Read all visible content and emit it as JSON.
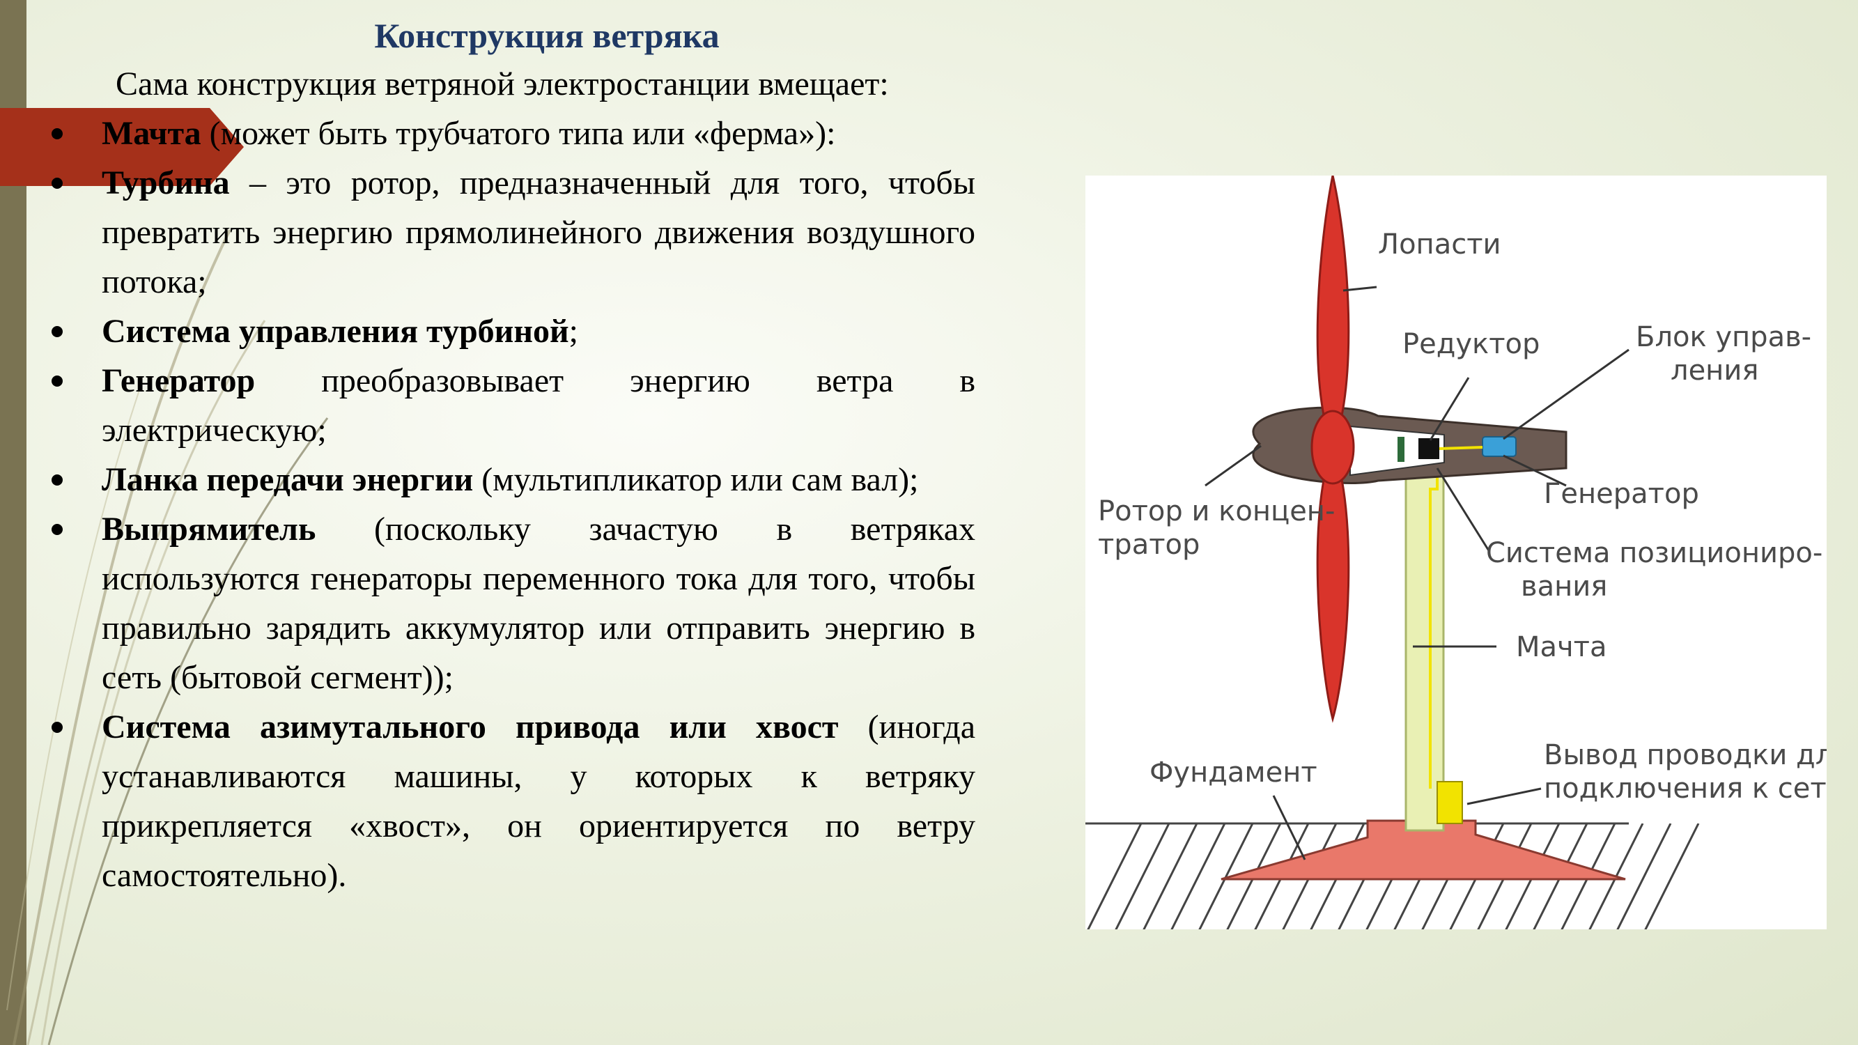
{
  "slide": {
    "title": "Конструкция ветряка",
    "intro": "Сама конструкция ветряной электростанции вмещает:",
    "bullets": [
      {
        "bold": "Мачта",
        "text": " (может быть трубчатого типа или «ферма»):"
      },
      {
        "bold": "Турбина",
        "text": " – это ротор, предназначенный для того, чтобы превратить энергию прямолинейного движения воздушного потока;"
      },
      {
        "bold": "Система управления турбиной",
        "text": ";"
      },
      {
        "bold": "Генератор",
        "text": " преобразовывает энергию ветра в электрическую;"
      },
      {
        "bold": "Ланка передачи энергии",
        "text": " (мультипликатор или сам вал);"
      },
      {
        "bold": "Выпрямитель",
        "text": " (поскольку зачастую в ветряках используются генераторы переменного тока для того, чтобы правильно зарядить аккумулятор или отправить энергию в сеть (бытовой сегмент));"
      },
      {
        "bold": "Система азимутального привода или хвост",
        "text": " (иногда устанавливаются машины, у которых к ветряку прикрепляется «хвост», он ориентируется по ветру самостоятельно)."
      }
    ]
  },
  "diagram": {
    "labels": {
      "blades": "Лопасти",
      "gearbox": "Редуктор",
      "control_1": "Блок управ-",
      "control_2": "ления",
      "rotor_1": "Ротор и концен-",
      "rotor_2": "тратор",
      "generator": "Генератор",
      "positioning_1": "Система позициониро-",
      "positioning_2": "вания",
      "mast": "Мачта",
      "foundation": "Фундамент",
      "wiring_1": "Вывод проводки для",
      "wiring_2": "подключения к сети"
    },
    "colors": {
      "blade": "#d9342b",
      "nacelle": "#6b5a52",
      "mast": "#e9f0b4",
      "foundation": "#e9786a",
      "wiring": "#f2e300",
      "control": "#3aa0d8"
    }
  },
  "colors": {
    "title": "#1f3864",
    "accent_bar": "#7a7352",
    "arrow": "#a5301a"
  }
}
